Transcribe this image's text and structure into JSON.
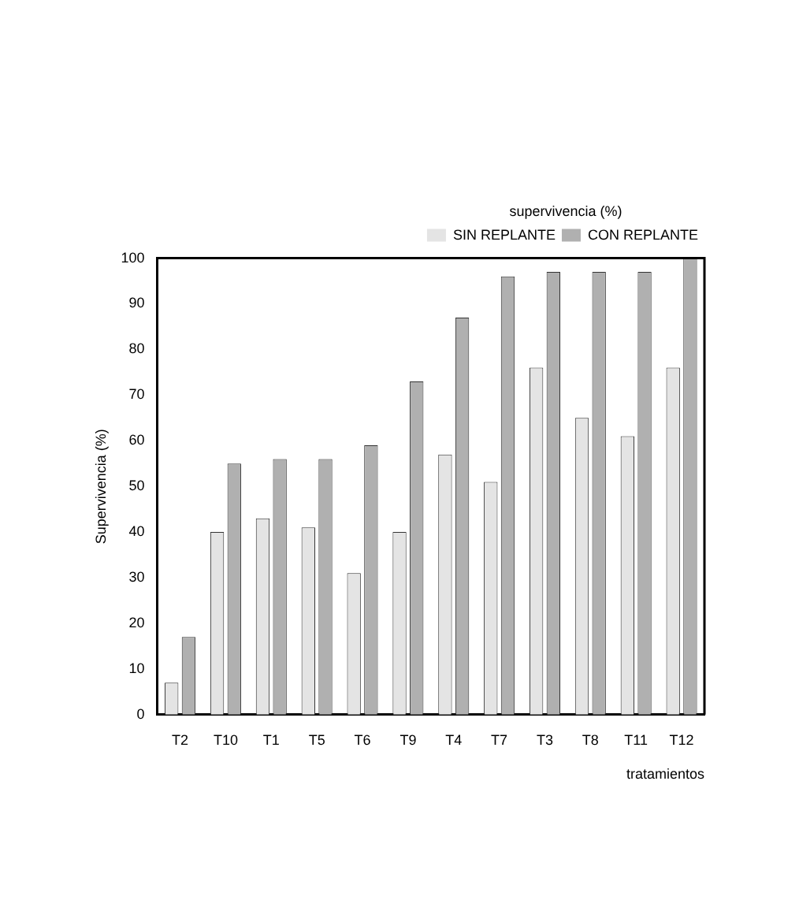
{
  "chart_data": {
    "type": "bar",
    "xlabel": "tratamientos",
    "ylabel": "Supervivencia (%)",
    "legend_title": "supervivencia (%)",
    "categories": [
      "T2",
      "T10",
      "T1",
      "T5",
      "T6",
      "T9",
      "T4",
      "T7",
      "T3",
      "T8",
      "T11",
      "T12"
    ],
    "series": [
      {
        "name": "SIN REPLANTE",
        "color": "#e4e4e4",
        "values": [
          7,
          40,
          43,
          41,
          31,
          40,
          57,
          51,
          76,
          65,
          61,
          76
        ]
      },
      {
        "name": "CON REPLANTE",
        "color": "#b0b0b0",
        "values": [
          17,
          55,
          56,
          56,
          59,
          73,
          87,
          96,
          97,
          97,
          97,
          100
        ]
      }
    ],
    "ylim": [
      0,
      100
    ],
    "yticks": [
      0,
      10,
      20,
      30,
      40,
      50,
      60,
      70,
      80,
      90,
      100
    ],
    "grid": false,
    "legend": "top right"
  }
}
